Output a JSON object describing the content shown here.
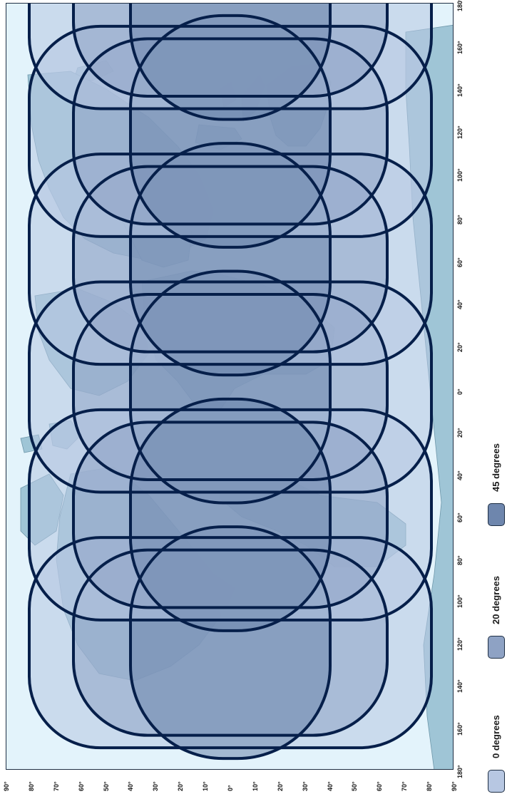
{
  "map": {
    "projection": "equirectangular, rotated 90 degrees",
    "colors": {
      "ocean": "#e3f3fb",
      "land": "#9fc5d6",
      "land_stroke": "#6e97aa",
      "zone_0": "#b7c7e2",
      "zone_20": "#8ea2c4",
      "zone_45": "#6e86ad",
      "outline": "#061f4a"
    },
    "satellite_longitudes": [
      0,
      60,
      120,
      180,
      -120,
      -60
    ]
  },
  "axes": {
    "latitude_ticks": [
      "90°",
      "80°",
      "70°",
      "60°",
      "50°",
      "40°",
      "30°",
      "20°",
      "10°",
      "0°",
      "10°",
      "20°",
      "30°",
      "40°",
      "50°",
      "60°",
      "70°",
      "80°",
      "90°"
    ],
    "longitude_ticks": [
      "180°",
      "160°",
      "140°",
      "120°",
      "100°",
      "80°",
      "60°",
      "40°",
      "20°",
      "0°",
      "20°",
      "40°",
      "60°",
      "80°",
      "100°",
      "120°",
      "140°",
      "160°",
      "180°"
    ]
  },
  "legend": {
    "items": [
      {
        "label": "0 degrees",
        "color": "#b7c7e2"
      },
      {
        "label": "20 degrees",
        "color": "#8ea2c4"
      },
      {
        "label": "45 degrees",
        "color": "#6e86ad"
      }
    ]
  }
}
